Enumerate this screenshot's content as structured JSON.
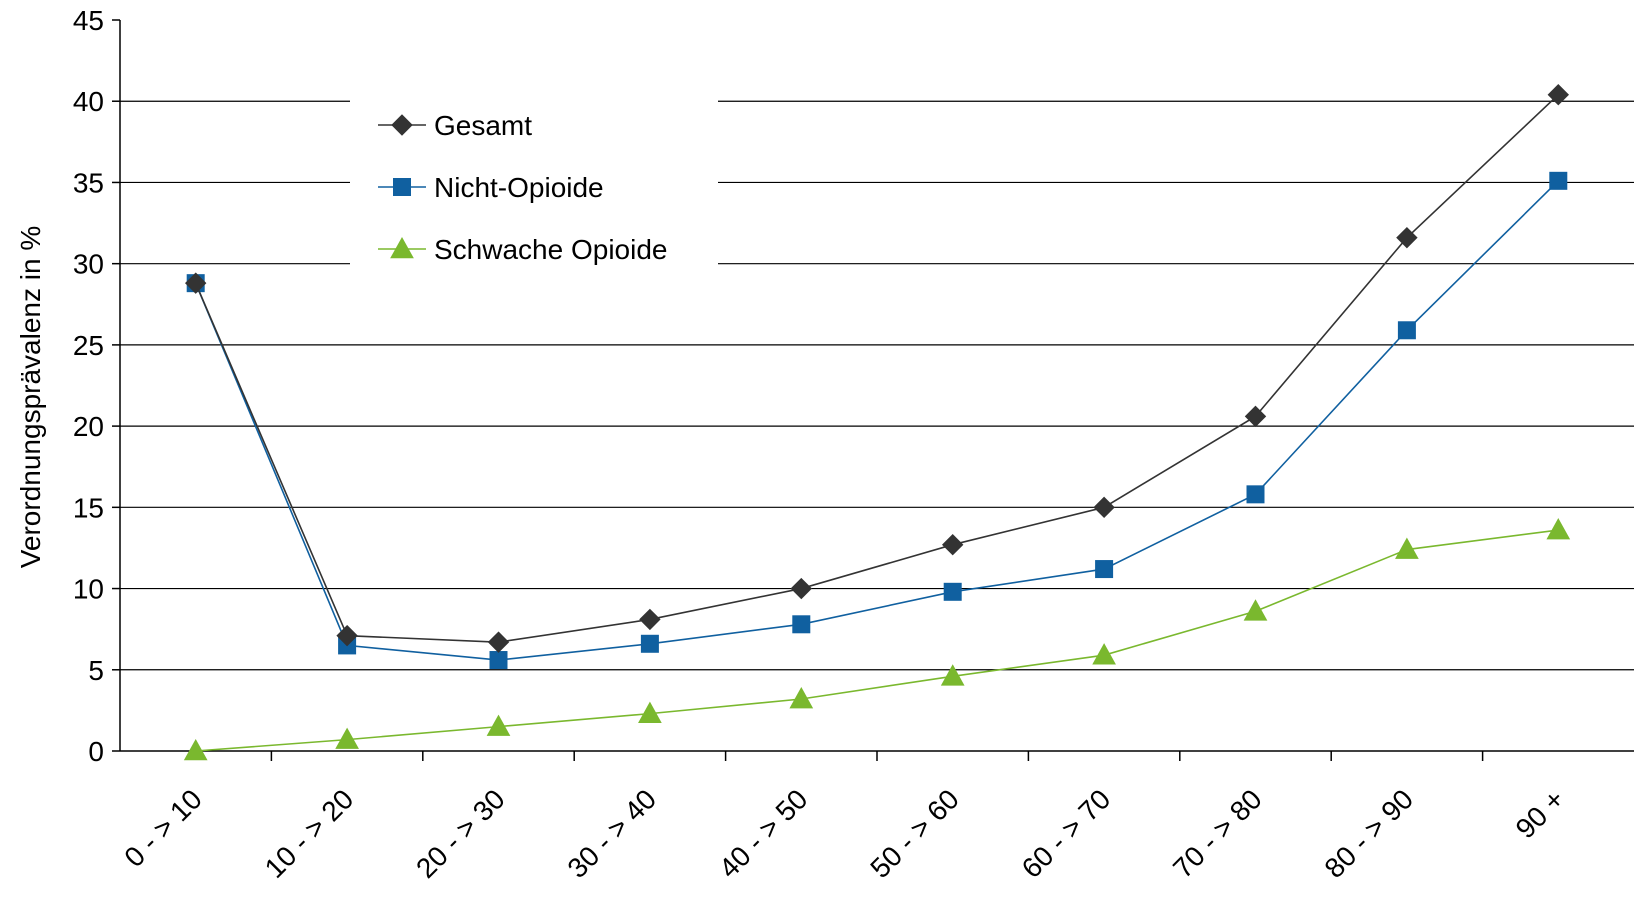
{
  "chart_data": {
    "type": "line",
    "title": "",
    "xlabel": "",
    "ylabel": "Verordnungsprävalenz in %",
    "categories": [
      "0 - > 10",
      "10 - > 20",
      "20 - > 30",
      "30 - > 40",
      "40 - > 50",
      "50 - > 60",
      "60 - > 70",
      "70 - > 80",
      "80 - > 90",
      "90 +"
    ],
    "ylim": [
      0,
      45
    ],
    "yticks": [
      0,
      5,
      10,
      15,
      20,
      25,
      30,
      35,
      40,
      45
    ],
    "grid": true,
    "legend_position": "top-left",
    "series": [
      {
        "name": "Gesamt",
        "color": "#333333",
        "marker": "diamond",
        "values": [
          28.8,
          7.1,
          6.7,
          8.1,
          10.0,
          12.7,
          15.0,
          20.6,
          31.6,
          40.4
        ]
      },
      {
        "name": "Nicht-Opioide",
        "color": "#1060A0",
        "marker": "square",
        "values": [
          28.8,
          6.5,
          5.6,
          6.6,
          7.8,
          9.8,
          11.2,
          15.8,
          25.9,
          35.1
        ]
      },
      {
        "name": "Schwache Opioide",
        "color": "#7AB82E",
        "marker": "triangle",
        "values": [
          0.0,
          0.7,
          1.5,
          2.3,
          3.2,
          4.6,
          5.9,
          8.6,
          12.4,
          13.6
        ]
      }
    ]
  }
}
